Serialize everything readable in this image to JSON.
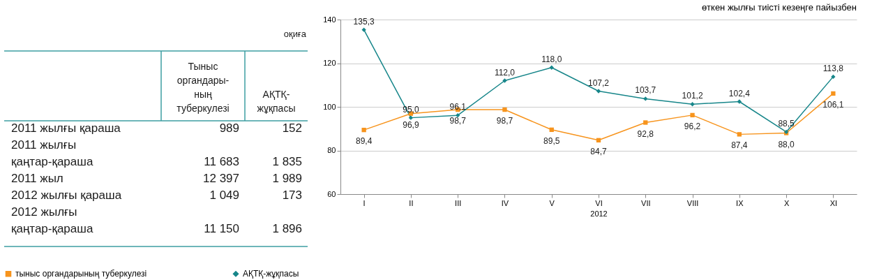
{
  "chart_data": [
    {
      "type": "other",
      "annotations": [
        "оқиға"
      ],
      "categories": [
        "2011 жылғы қараша",
        "2011 жылғы қаңтар-қараша",
        "2011 жыл",
        "2012 жылғы қараша",
        "2012 жылғы қаңтар-қараша"
      ],
      "series": [
        {
          "name": "Тыныс органдары-ның туберкулезі",
          "values": [
            989,
            11683,
            12397,
            1049,
            11150
          ]
        },
        {
          "name": "АҚТҚ-жұқпасы",
          "values": [
            152,
            1835,
            1989,
            173,
            1896
          ]
        }
      ],
      "data_labels": true
    },
    {
      "type": "line",
      "subtitle": "өткен жылғы тиісті кезеңге пайызбен",
      "xlabel": "2012",
      "categories": [
        "I",
        "II",
        "III",
        "IV",
        "V",
        "VI",
        "VII",
        "VIII",
        "IX",
        "X",
        "XI"
      ],
      "series": [
        {
          "name": "тыныс органдарының туберкулезі",
          "color": "#f7941d",
          "marker": "square",
          "values": [
            89.4,
            96.9,
            98.7,
            98.7,
            89.5,
            84.7,
            92.8,
            96.2,
            87.4,
            88.0,
            106.1
          ],
          "value_labels": [
            "89,4",
            "96,9",
            "98,7",
            "98,7",
            "89,5",
            "84,7",
            "92,8",
            "96,2",
            "87,4",
            "88,0",
            "106,1"
          ]
        },
        {
          "name": "АҚТҚ-жұқпасы",
          "color": "#17868a",
          "marker": "diamond",
          "values": [
            135.3,
            95.0,
            96.1,
            112.0,
            118.0,
            107.2,
            103.7,
            101.2,
            102.4,
            88.5,
            113.8
          ],
          "value_labels": [
            "135,3",
            "95,0",
            "96,1",
            "112,0",
            "118,0",
            "107,2",
            "103,7",
            "101,2",
            "102,4",
            "88,5",
            "113,8"
          ]
        }
      ],
      "ylim": [
        60,
        140
      ],
      "yticks": [
        60,
        80,
        100,
        120,
        140
      ],
      "grid": "y",
      "legend": "bottom",
      "line_style": "solid"
    }
  ]
}
